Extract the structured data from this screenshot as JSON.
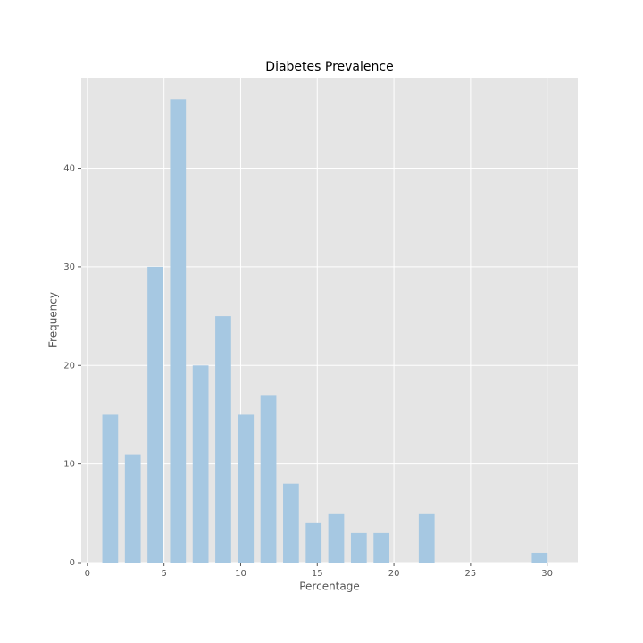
{
  "chart_data": {
    "type": "histogram",
    "title": "Diabetes Prevalence",
    "x_label": "Percentage",
    "y_label": "Frequency",
    "bins": [
      0.75,
      2.225,
      3.7,
      5.175,
      6.65,
      8.125,
      9.6,
      11.075,
      12.55,
      14.025,
      15.5,
      16.975,
      18.45,
      19.925,
      21.4,
      22.875,
      24.35,
      25.825,
      27.3,
      28.775,
      30.25
    ],
    "values": [
      15,
      11,
      30,
      47,
      20,
      25,
      15,
      17,
      8,
      4,
      5,
      3,
      3,
      0,
      5,
      0,
      0,
      0,
      0,
      1
    ],
    "color": "#a6c8e2",
    "xlim": [
      -0.4,
      32
    ],
    "ylim": [
      0,
      49.2
    ],
    "xticks": [
      0,
      5,
      10,
      15,
      20,
      25,
      30
    ],
    "yticks": [
      0,
      10,
      20,
      30,
      40
    ],
    "grid": true
  }
}
